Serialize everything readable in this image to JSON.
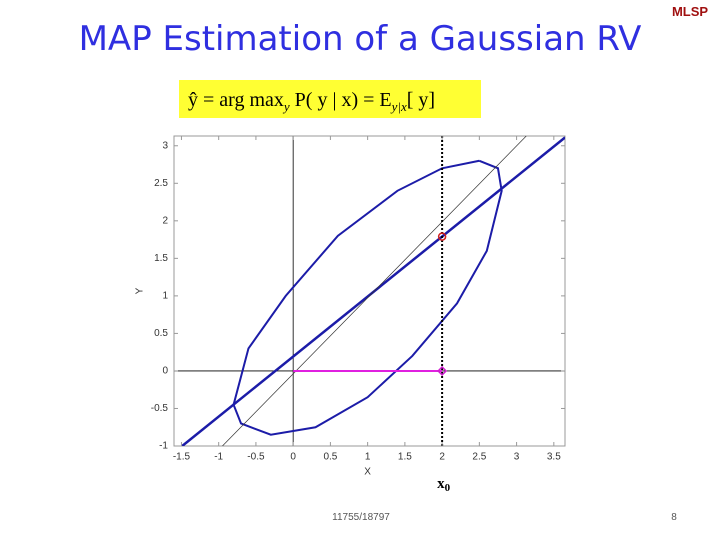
{
  "slide": {
    "title": "MAP Estimation of a Gaussian RV",
    "logo": "MLSP",
    "formula": [
      "ŷ = arg max",
      "y",
      " P( y | x) = E",
      "y|x",
      "[ y]"
    ],
    "footer": "11755/18797",
    "page": "8"
  },
  "chart_data": {
    "type": "line",
    "xlabel": "X",
    "ylabel": "Y",
    "xlim": [
      -1.6,
      3.65
    ],
    "ylim": [
      -1,
      3.13
    ],
    "xticks": [
      -1.5,
      -1,
      -0.5,
      0,
      0.5,
      1,
      1.5,
      2,
      2.5,
      3,
      3.5
    ],
    "yticks": [
      -1,
      -0.5,
      0,
      0.5,
      1,
      1.5,
      2,
      2.5,
      3
    ],
    "zero_lines": true,
    "series": [
      {
        "color": "#1c1ca8",
        "style": "solid",
        "width": 2,
        "x": [
          2.5,
          2.75,
          2.8,
          2.6,
          2.2,
          1.6,
          1.0,
          0.3,
          -0.3,
          -0.7,
          -0.8,
          -0.6,
          -0.1,
          0.6,
          1.4,
          2.0,
          2.5
        ],
        "values": [
          2.8,
          2.7,
          2.4,
          1.6,
          0.9,
          0.2,
          -0.35,
          -0.75,
          -0.85,
          -0.7,
          -0.45,
          0.3,
          1.0,
          1.8,
          2.4,
          2.7,
          2.8
        ]
      },
      {
        "color": "#1c1ca8",
        "style": "solid",
        "width": 2.5,
        "x": [
          -1.49,
          3.65
        ],
        "values": [
          -1,
          3.11
        ]
      },
      {
        "color": "#333333",
        "style": "solid",
        "width": 0.7,
        "x": [
          -0.95,
          3.13
        ],
        "values": [
          -1,
          3.13
        ]
      },
      {
        "color": "#e020e0",
        "style": "solid",
        "width": 2,
        "x": [
          0,
          2
        ],
        "values": [
          0,
          0
        ]
      },
      {
        "color": "#000000",
        "style": "dotted",
        "width": 2,
        "x": [
          2,
          2
        ],
        "values": [
          -1,
          3.13
        ]
      }
    ],
    "markers": [
      {
        "x": 2,
        "y": 1.79,
        "color": "#d02020",
        "shape": "circle"
      },
      {
        "x": 2,
        "y": 0,
        "color": "#d020d0",
        "shape": "diamond"
      }
    ],
    "annotation": {
      "x": 2,
      "text": [
        "x",
        "0"
      ]
    }
  }
}
